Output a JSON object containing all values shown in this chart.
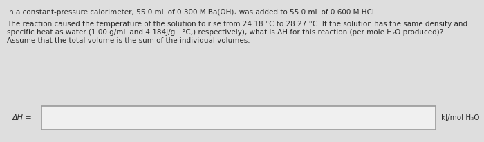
{
  "bg_color": "#dedede",
  "text_color": "#2a2a2a",
  "box_color": "#f0f0f0",
  "box_border_color": "#999999",
  "line1": "In a constant-pressure calorimeter, 55.0 mL of 0.300 M Ba(OH)₂ was added to 55.0 mL of 0.600 M HCl.",
  "line2": "The reaction caused the temperature of the solution to rise from 24.18 °C to 28.27 °C. If the solution has the same density and",
  "line3": "specific heat as water (1.00 g/mL and 4.184J/g · °C,) respectively), what is ΔH for this reaction (per mole H₂O produced)?",
  "line4": "Assume that the total volume is the sum of the individual volumes.",
  "answer_label": "ΔH =",
  "answer_unit": "kJ/mol H₂O",
  "font_size": 7.5
}
